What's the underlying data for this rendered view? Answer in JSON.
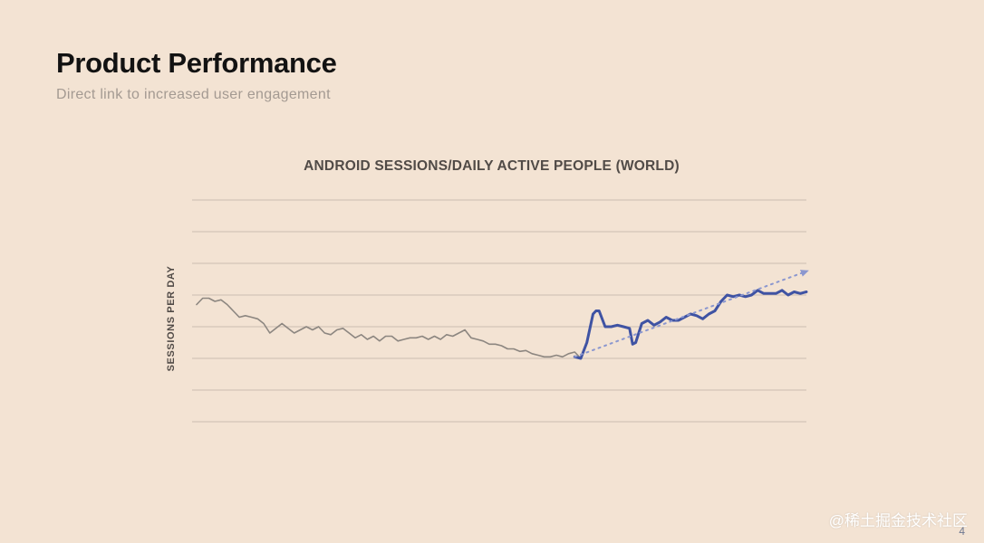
{
  "slide": {
    "title": "Product Performance",
    "subtitle": "Direct link to increased user engagement",
    "page_number": "4",
    "watermark": "@稀土掘金技术社区"
  },
  "colors": {
    "background": "#f3e3d3",
    "gridline": "#d3c5b9",
    "before_series": "#8c8680",
    "after_series": "#3f53a3",
    "trend": "#8b97cf"
  },
  "chart_data": {
    "type": "line",
    "title": "ANDROID SESSIONS/DAILY ACTIVE PEOPLE (WORLD)",
    "xlabel": "",
    "ylabel": "SESSIONS PER DAY",
    "tick_labels_shown": false,
    "grid": true,
    "gridline_count": 8,
    "x_range": [
      0,
      100
    ],
    "ylim": [
      0,
      7
    ],
    "series": [
      {
        "style": "thin-gray",
        "x": [
          0,
          1,
          2,
          3,
          4,
          5,
          6,
          7,
          8,
          9,
          10,
          11,
          12,
          13,
          14,
          15,
          16,
          17,
          18,
          19,
          20,
          21,
          22,
          23,
          24,
          25,
          26,
          27,
          28,
          29,
          30,
          31,
          32,
          33,
          34,
          35,
          36,
          37,
          38,
          39,
          40,
          41,
          42,
          43,
          44,
          45,
          46,
          47,
          48,
          49,
          50,
          51,
          52,
          53,
          54,
          55,
          56,
          57,
          58,
          59,
          60,
          61,
          62,
          63
        ],
        "y": [
          3.7,
          3.9,
          3.9,
          3.8,
          3.85,
          3.7,
          3.5,
          3.3,
          3.35,
          3.3,
          3.25,
          3.1,
          2.8,
          2.95,
          3.1,
          2.95,
          2.8,
          2.9,
          3.0,
          2.9,
          3.0,
          2.8,
          2.75,
          2.9,
          2.95,
          2.8,
          2.65,
          2.75,
          2.6,
          2.7,
          2.55,
          2.7,
          2.7,
          2.55,
          2.6,
          2.65,
          2.65,
          2.7,
          2.6,
          2.7,
          2.6,
          2.75,
          2.7,
          2.8,
          2.9,
          2.65,
          2.6,
          2.55,
          2.45,
          2.45,
          2.4,
          2.3,
          2.3,
          2.22,
          2.25,
          2.15,
          2.1,
          2.05,
          2.05,
          2.1,
          2.05,
          2.15,
          2.2,
          2.0
        ]
      },
      {
        "style": "thick-blue",
        "x": [
          62,
          63,
          64,
          65,
          65.5,
          66,
          67,
          68,
          69,
          70,
          71,
          71.5,
          72,
          73,
          74,
          75,
          76,
          77,
          78,
          79,
          80,
          81,
          82,
          83,
          84,
          85,
          86,
          87,
          88,
          89,
          90,
          91,
          92,
          93,
          94,
          95,
          96,
          97,
          98,
          99,
          100
        ],
        "y": [
          2.05,
          2.0,
          2.5,
          3.4,
          3.5,
          3.5,
          3.0,
          3.0,
          3.05,
          3.0,
          2.95,
          2.45,
          2.5,
          3.1,
          3.2,
          3.05,
          3.15,
          3.3,
          3.2,
          3.2,
          3.3,
          3.4,
          3.35,
          3.25,
          3.4,
          3.5,
          3.8,
          4.0,
          3.95,
          4.0,
          3.95,
          4.0,
          4.15,
          4.05,
          4.05,
          4.05,
          4.15,
          4.0,
          4.1,
          4.05,
          4.1
        ]
      },
      {
        "style": "dotted-trend-arrow",
        "x": [
          62,
          100
        ],
        "y": [
          2.05,
          4.75
        ]
      }
    ]
  }
}
